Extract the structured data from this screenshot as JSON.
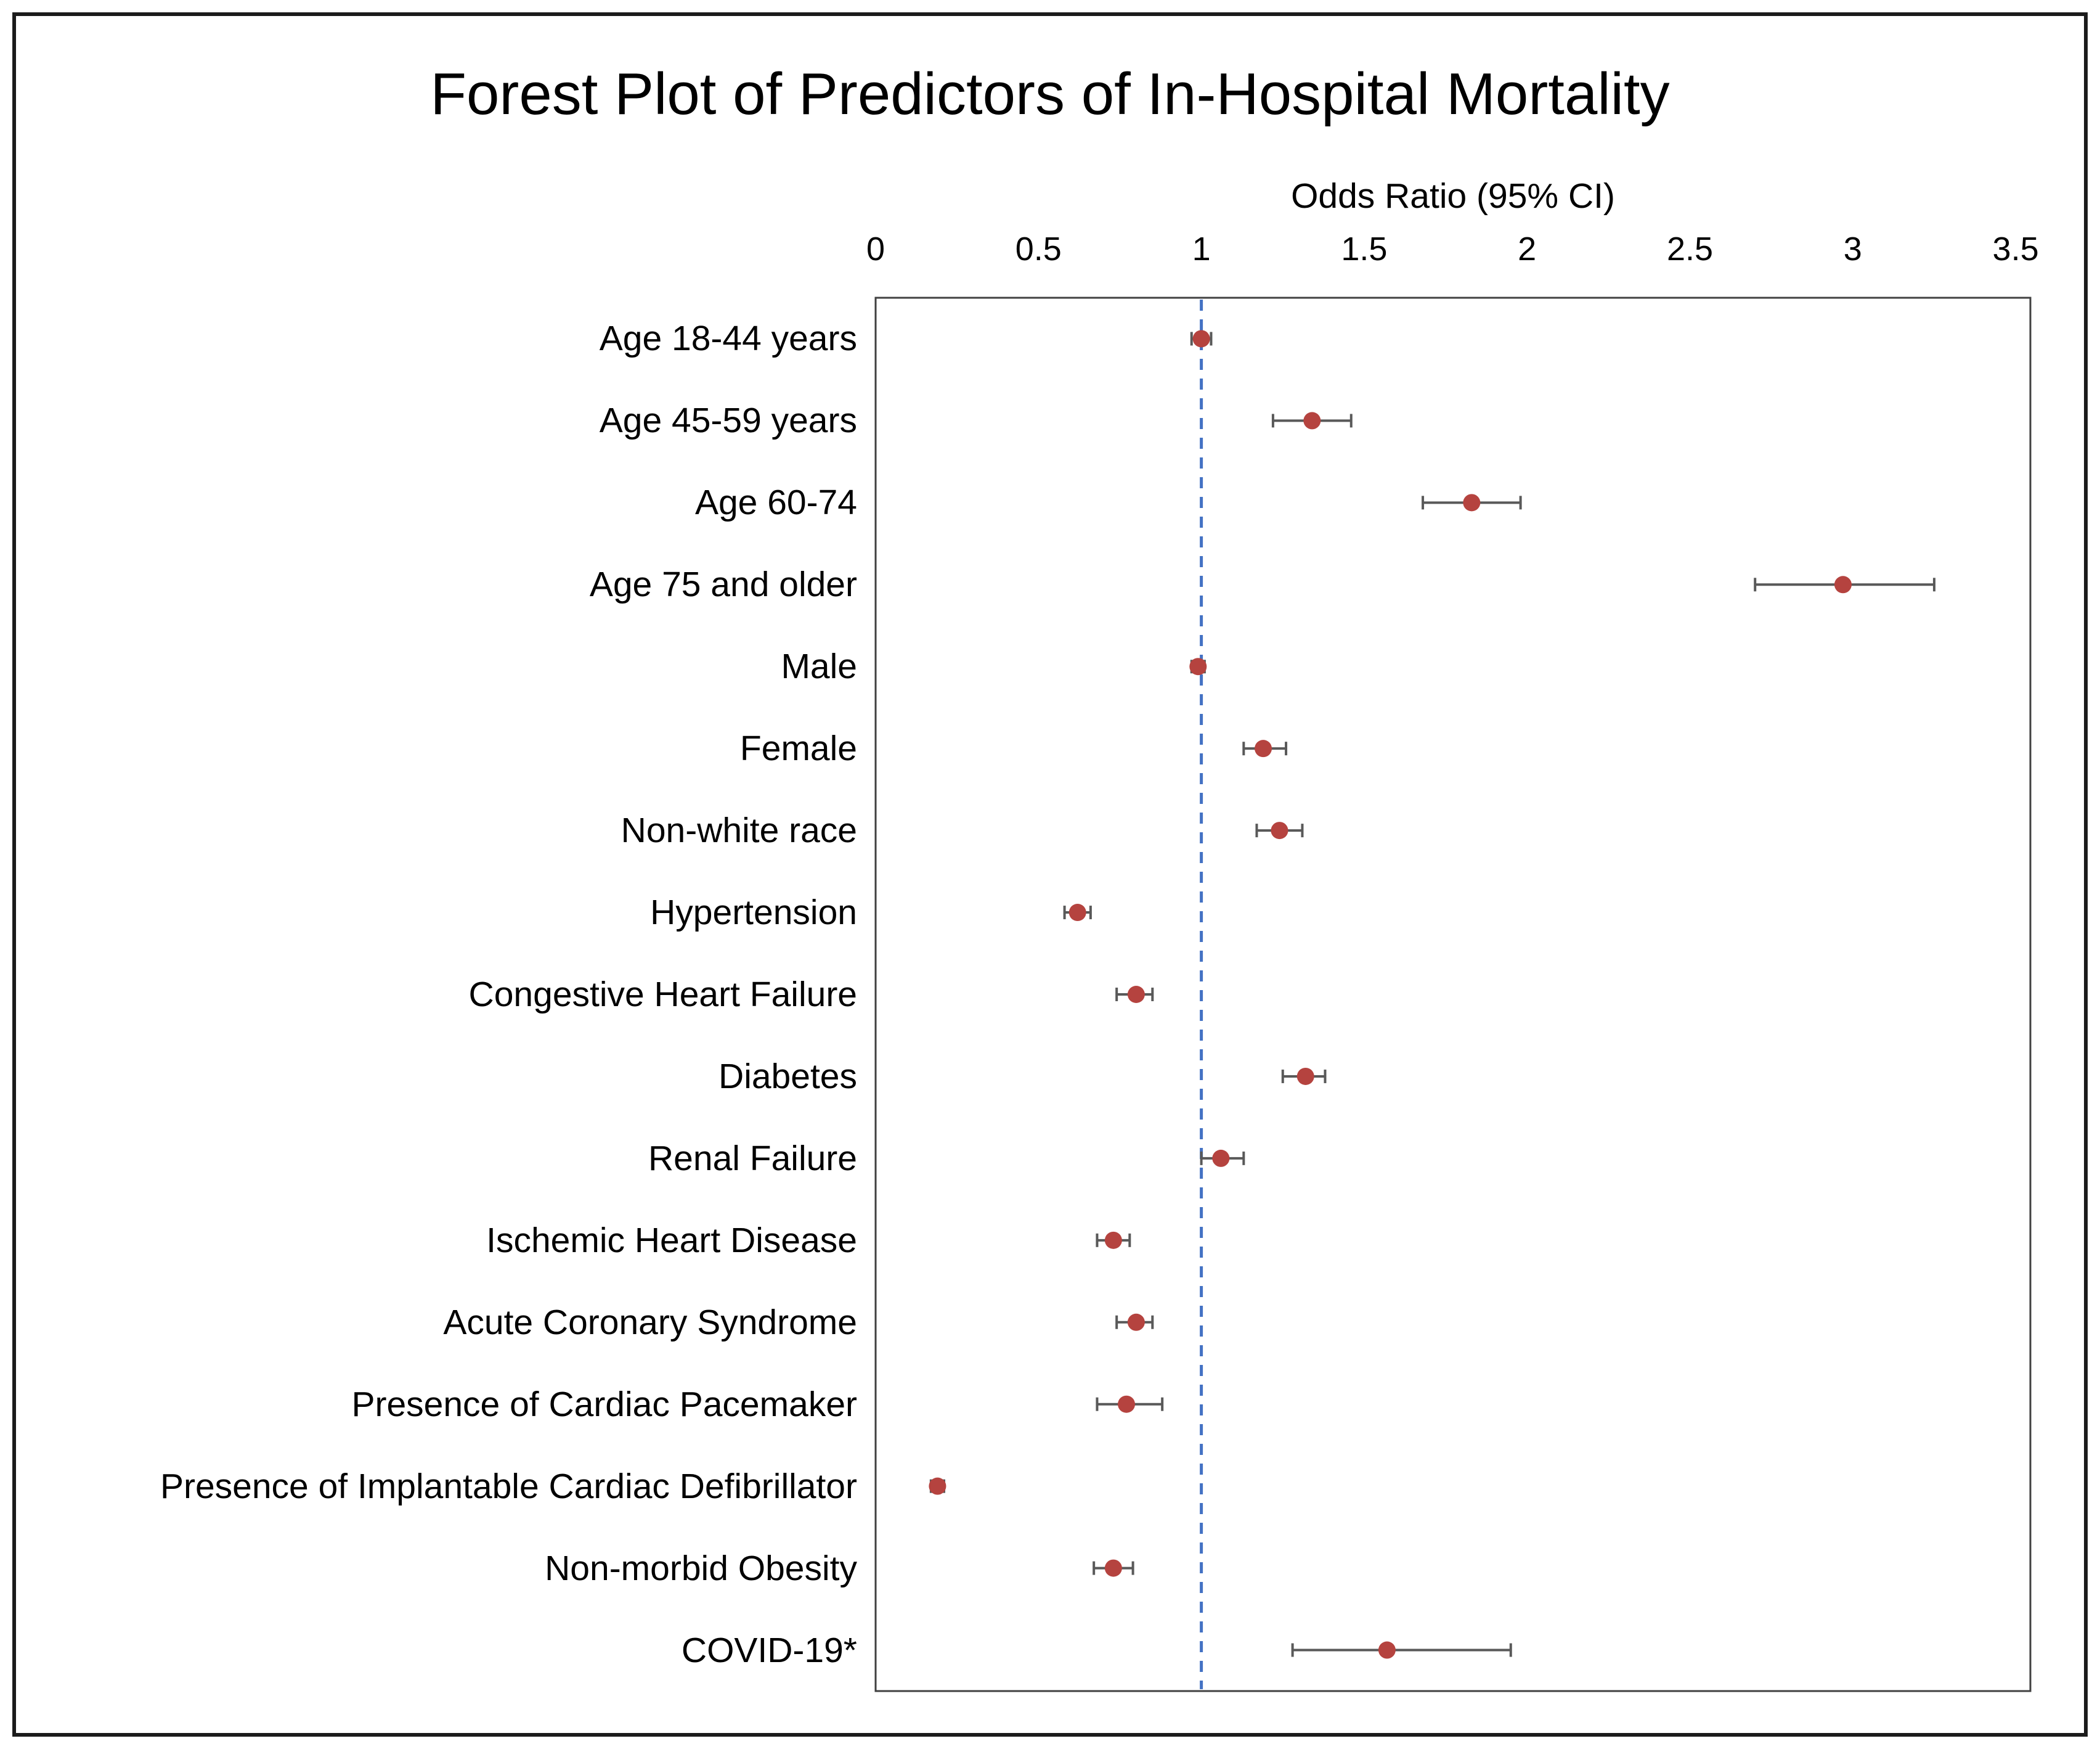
{
  "title": "Forest Plot of Predictors of In-Hospital Mortality",
  "chart_data": {
    "type": "scatter",
    "subtype": "forest-plot-with-error-bars",
    "title": "Forest Plot of Predictors of In-Hospital Mortality",
    "xlabel": "Odds Ratio (95% CI)",
    "xlim": [
      0,
      3.5
    ],
    "xtick_values": [
      0,
      0.5,
      1,
      1.5,
      2,
      2.5,
      3,
      3.5
    ],
    "xtick_labels": [
      "0",
      "0.5",
      "1",
      "1.5",
      "2",
      "2.5",
      "3",
      "3.5"
    ],
    "reference_line_x": 1,
    "grid": false,
    "legend": "none",
    "categories": [
      "Age 18-44 years",
      "Age 45-59 years",
      "Age 60-74",
      "Age 75 and older",
      "Male",
      "Female",
      "Non-white race",
      "Hypertension",
      "Congestive Heart Failure",
      "Diabetes",
      "Renal Failure",
      "Ischemic Heart Disease",
      "Acute Coronary Syndrome",
      "Presence of Cardiac Pacemaker",
      "Presence of Implantable Cardiac Defibrillator",
      "Non-morbid Obesity",
      "COVID-19*"
    ],
    "series": [
      {
        "name": "Odds Ratio (95% CI)",
        "odds_ratio": [
          1.0,
          1.34,
          1.83,
          2.97,
          0.99,
          1.19,
          1.24,
          0.62,
          0.8,
          1.32,
          1.06,
          0.73,
          0.8,
          0.77,
          0.19,
          0.73,
          1.57
        ],
        "ci_low": [
          0.97,
          1.22,
          1.68,
          2.7,
          0.97,
          1.13,
          1.17,
          0.58,
          0.74,
          1.25,
          1.0,
          0.68,
          0.74,
          0.68,
          0.17,
          0.67,
          1.28
        ],
        "ci_high": [
          1.03,
          1.46,
          1.98,
          3.25,
          1.01,
          1.26,
          1.31,
          0.66,
          0.85,
          1.38,
          1.13,
          0.78,
          0.85,
          0.88,
          0.21,
          0.79,
          1.95
        ]
      }
    ],
    "colors": {
      "point": "#b5433f",
      "ci_bar": "#595959",
      "reference_line": "#4472c4",
      "plot_border": "#404040",
      "outer_border": "#1b1b1b",
      "text": "#000000",
      "background": "#ffffff"
    }
  }
}
